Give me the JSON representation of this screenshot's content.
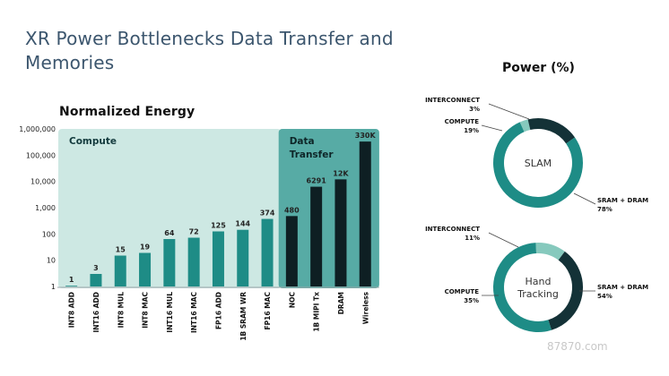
{
  "page": {
    "title": "XR Power Bottlenecks Data Transfer and Memories",
    "watermark": "87870.com"
  },
  "chart_data": [
    {
      "type": "bar",
      "title": "Normalized Energy",
      "yscale": "log",
      "ylim": [
        1,
        1000000
      ],
      "yticks": [
        {
          "value": 1,
          "label": "1"
        },
        {
          "value": 10,
          "label": "10"
        },
        {
          "value": 100,
          "label": "100"
        },
        {
          "value": 1000,
          "label": "1,000"
        },
        {
          "value": 10000,
          "label": "10,000"
        },
        {
          "value": 100000,
          "label": "100,000"
        },
        {
          "value": 1000000,
          "label": "1,000,000"
        }
      ],
      "groups": [
        {
          "label": "Compute",
          "color": "#cde8e3",
          "from": 0,
          "to": 8
        },
        {
          "label": "Data Transfer",
          "color": "#57aba5",
          "from": 9,
          "to": 12
        }
      ],
      "categories": [
        "INT8 ADD",
        "INT16 ADD",
        "INT8 MUL",
        "INT8 MAC",
        "INT16 MUL",
        "INT16 MAC",
        "FP16 ADD",
        "1B SRAM WR",
        "FP16 MAC",
        "NOC",
        "1B MIPI Tx",
        "DRAM",
        "Wireless"
      ],
      "values": [
        1,
        3,
        15,
        19,
        64,
        72,
        125,
        144,
        374,
        480,
        6291,
        12000,
        330000
      ],
      "value_labels": [
        "1",
        "3",
        "15",
        "19",
        "64",
        "72",
        "125",
        "144",
        "374",
        "480",
        "6291",
        "12K",
        "330K"
      ],
      "bar_colors": [
        "#1e8c86",
        "#1e8c86",
        "#1e8c86",
        "#1e8c86",
        "#1e8c86",
        "#1e8c86",
        "#1e8c86",
        "#1e8c86",
        "#1e8c86",
        "#0e1f23",
        "#0e1f23",
        "#0e1f23",
        "#0e1f23"
      ]
    },
    {
      "type": "pie",
      "style": "donut",
      "title": "SLAM",
      "slices": [
        {
          "label": "INTERCONNECT",
          "value": 3,
          "value_label": "3%",
          "color": "#86c9bd"
        },
        {
          "label": "COMPUTE",
          "value": 19,
          "value_label": "19%",
          "color": "#143237"
        },
        {
          "label": "SRAM + DRAM",
          "value": 78,
          "value_label": "78%",
          "color": "#1e8c86"
        }
      ]
    },
    {
      "type": "pie",
      "style": "donut",
      "title": "Hand Tracking",
      "slices": [
        {
          "label": "INTERCONNECT",
          "value": 11,
          "value_label": "11%",
          "color": "#86c9bd"
        },
        {
          "label": "COMPUTE",
          "value": 35,
          "value_label": "35%",
          "color": "#143237"
        },
        {
          "label": "SRAM + DRAM",
          "value": 54,
          "value_label": "54%",
          "color": "#1e8c86"
        }
      ]
    }
  ],
  "power": {
    "title": "Power (%)"
  }
}
